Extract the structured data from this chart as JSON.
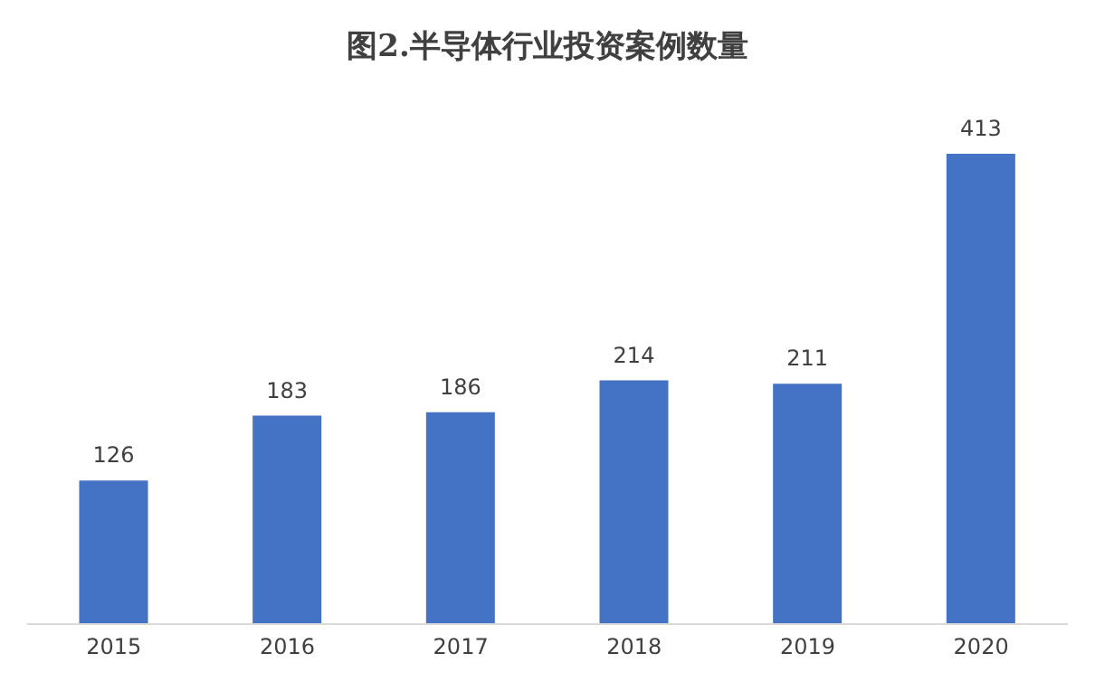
{
  "chart_data": {
    "type": "bar",
    "title": "图2.半导体行业投资案例数量",
    "categories": [
      "2015",
      "2016",
      "2017",
      "2018",
      "2019",
      "2020"
    ],
    "values": [
      126,
      183,
      186,
      214,
      211,
      413
    ],
    "color": "#4472c4",
    "data_labels": true
  }
}
